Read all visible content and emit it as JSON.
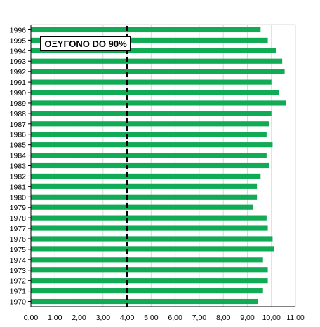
{
  "chart_data": {
    "type": "bar",
    "orientation": "horizontal",
    "categories": [
      "1996",
      "1995",
      "1994",
      "1993",
      "1992",
      "1991",
      "1990",
      "1989",
      "1988",
      "1987",
      "1986",
      "1985",
      "1984",
      "1983",
      "1982",
      "1981",
      "1980",
      "1979",
      "1978",
      "1977",
      "1976",
      "1975",
      "1974",
      "1973",
      "1972",
      "1971",
      "1970"
    ],
    "values": [
      9.55,
      9.85,
      10.2,
      10.45,
      10.55,
      10.0,
      10.3,
      10.6,
      10.0,
      9.9,
      9.8,
      10.05,
      9.8,
      9.9,
      9.55,
      9.4,
      9.4,
      9.25,
      9.8,
      9.85,
      10.05,
      10.1,
      9.65,
      9.85,
      9.85,
      9.65,
      9.45
    ],
    "xlim": [
      0,
      11
    ],
    "xticks": [
      "0,00",
      "1,00",
      "2,00",
      "3,00",
      "4,00",
      "5,00",
      "6,00",
      "7,00",
      "8,00",
      "9,00",
      "10,00",
      "11,00"
    ],
    "xlabel": "",
    "ylabel": "",
    "title": "",
    "reference_line": {
      "x": 4.0,
      "style": "dashed"
    },
    "annotation": "ΟΞΥΓΟΝΟ DO 90%",
    "bar_color": "#11aa55",
    "grid": true
  }
}
